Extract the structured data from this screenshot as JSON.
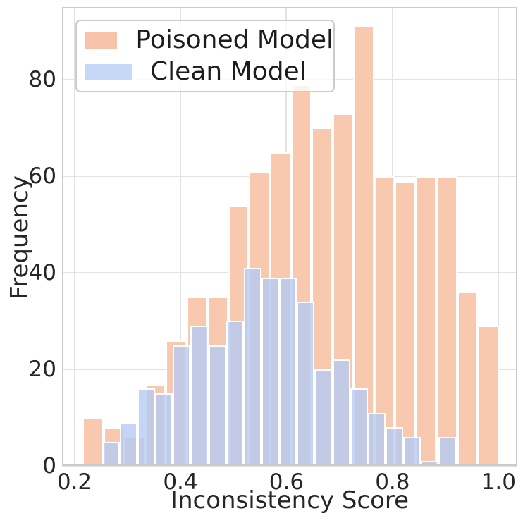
{
  "chart_data": {
    "type": "bar",
    "subtype": "overlaid-histogram",
    "title": "",
    "xlabel": "Inconsistency Score",
    "ylabel": "Frequency",
    "xlim": [
      0.1767,
      1.0355
    ],
    "ylim": [
      0,
      95
    ],
    "x_ticks": [
      0.2,
      0.4,
      0.6,
      0.8,
      1.0
    ],
    "x_tick_labels": [
      "0.2",
      "0.4",
      "0.6",
      "0.8",
      "1.0"
    ],
    "y_ticks": [
      0,
      20,
      40,
      60,
      80
    ],
    "y_tick_labels": [
      "0",
      "20",
      "40",
      "60",
      "80"
    ],
    "grid": true,
    "legend_position": "upper-left",
    "series": [
      {
        "name": "Poisoned Model",
        "bin_start": 0.2153,
        "bin_width": 0.03928,
        "counts": [
          10,
          8,
          6,
          17,
          26,
          35,
          35,
          54,
          61,
          65,
          79,
          70,
          73,
          91,
          60,
          59,
          60,
          60,
          36,
          29
        ],
        "fill_color": "#F8C8AF",
        "legend_color": "#F6C3A9",
        "edge_color": "#FFFFFF"
      },
      {
        "name": "Clean Model",
        "bin_start": 0.2522,
        "bin_width": 0.03342,
        "counts": [
          5,
          9,
          16,
          15,
          25,
          29,
          25,
          30,
          41,
          39,
          39,
          34,
          20,
          22,
          16,
          11,
          8,
          6,
          1,
          6
        ],
        "fill_color": "rgba(181,203,243,0.8)",
        "legend_color": "#C6D7F7",
        "edge_color": "#FFFFFF"
      }
    ],
    "colors": {
      "grid": "#e2e2e2",
      "spine": "#cbcbcb",
      "text": "#262626",
      "legend_border": "#cccccc",
      "legend_background": "rgba(255,255,255,0.8)"
    }
  }
}
